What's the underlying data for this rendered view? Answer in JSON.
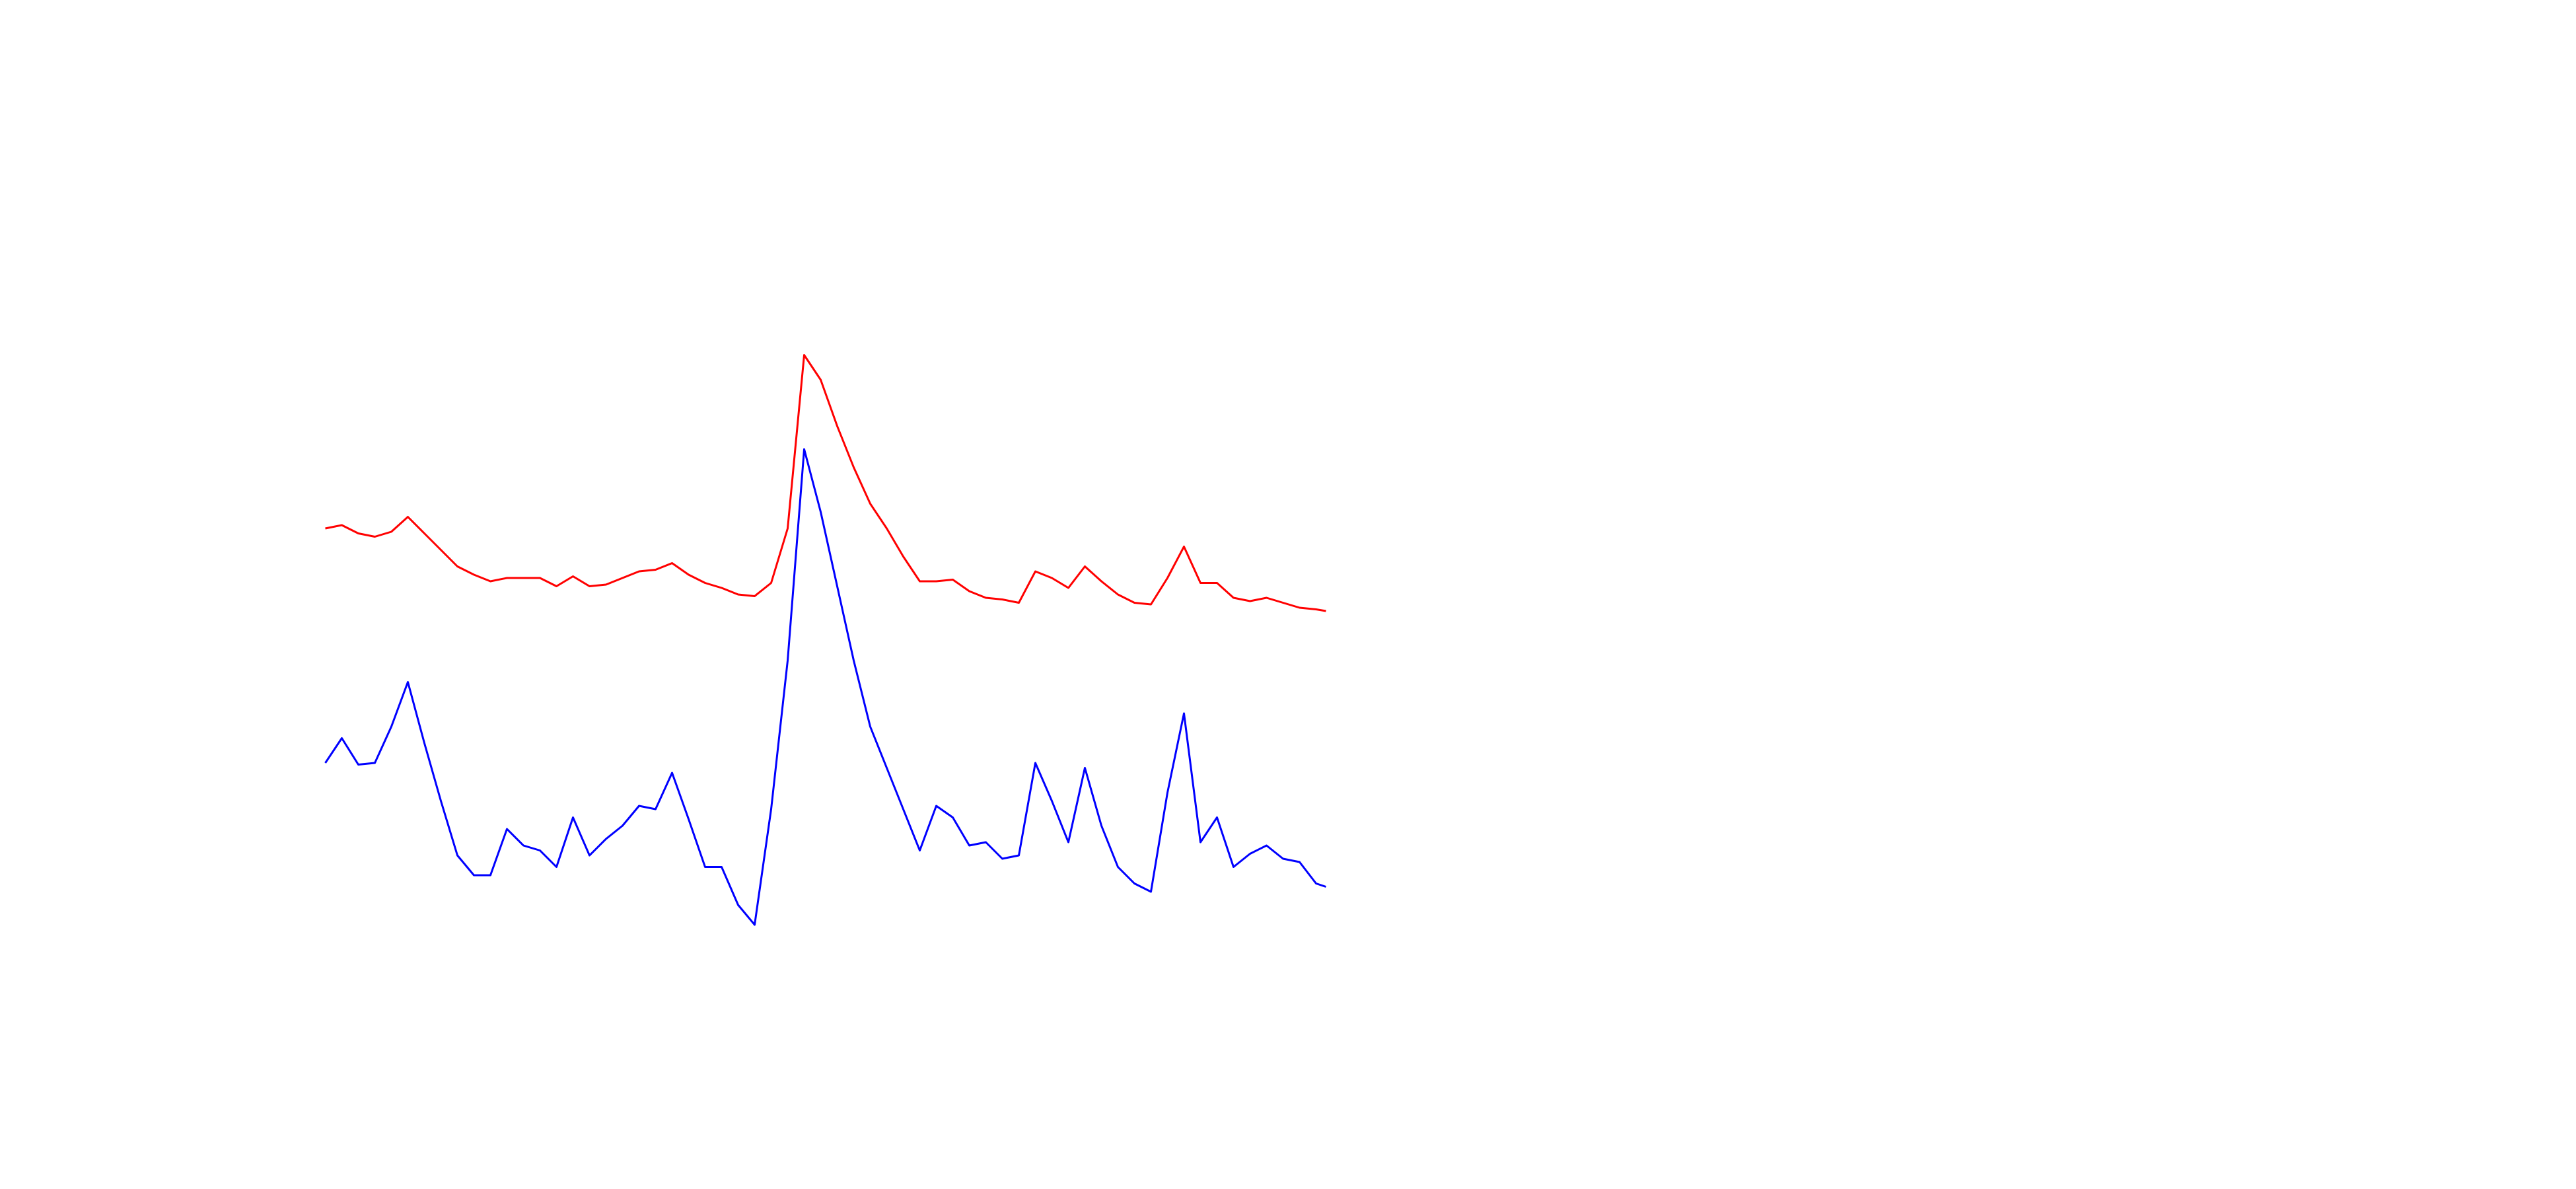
{
  "chart_data": {
    "type": "line",
    "x": [
      0,
      10,
      20,
      30,
      40,
      50,
      60,
      70,
      80,
      90,
      100,
      110,
      120,
      130,
      140,
      150,
      160,
      170,
      180,
      190,
      200,
      210,
      220,
      230,
      240,
      250,
      260,
      270,
      280,
      290,
      300,
      310,
      320,
      330,
      340,
      350,
      360,
      370,
      380,
      390,
      400,
      410,
      420,
      430,
      440,
      450,
      460,
      470,
      480,
      490,
      500,
      510,
      520,
      530,
      540,
      550,
      560,
      570,
      580,
      590,
      600,
      606
    ],
    "xlim": [
      0,
      606
    ],
    "ylim": [
      0,
      100
    ],
    "grid": false,
    "series": [
      {
        "color": "#ff0000",
        "values": [
          70,
          70.5,
          69.25,
          68.75,
          69.5,
          71.75,
          69.25,
          66.75,
          64.25,
          63,
          62,
          62.5,
          62.5,
          62.5,
          61.25,
          62.75,
          61.25,
          61.5,
          62.5,
          63.5,
          63.75,
          64.75,
          63,
          61.75,
          61,
          60,
          59.75,
          61.75,
          70,
          96.25,
          92.5,
          85.5,
          79.25,
          73.75,
          70,
          65.75,
          62,
          62,
          62.25,
          60.5,
          59.5,
          59.25,
          58.75,
          63.5,
          62.5,
          61,
          64.25,
          62,
          60,
          58.75,
          58.5,
          62.5,
          67.25,
          61.75,
          61.75,
          59.5,
          59,
          59.5,
          58.75,
          58,
          57.75,
          57.5
        ]
      },
      {
        "color": "#0000ff",
        "values": [
          34.5,
          38.25,
          34.25,
          34.5,
          40,
          46.75,
          37.5,
          28.75,
          20.5,
          17.5,
          17.5,
          24.5,
          22,
          21.25,
          18.75,
          26.25,
          20.5,
          23,
          25,
          28,
          27.5,
          33,
          26,
          18.75,
          18.75,
          13,
          10,
          27.5,
          50,
          82,
          72.5,
          61.25,
          50,
          40,
          33.75,
          27.5,
          21.25,
          28,
          26.25,
          22,
          22.5,
          20,
          20.5,
          34.5,
          28.75,
          22.5,
          33.75,
          25,
          18.75,
          16.25,
          15,
          30,
          42,
          22.5,
          26.25,
          18.75,
          20.75,
          22,
          20,
          19.5,
          16.25,
          15.75
        ]
      }
    ]
  }
}
